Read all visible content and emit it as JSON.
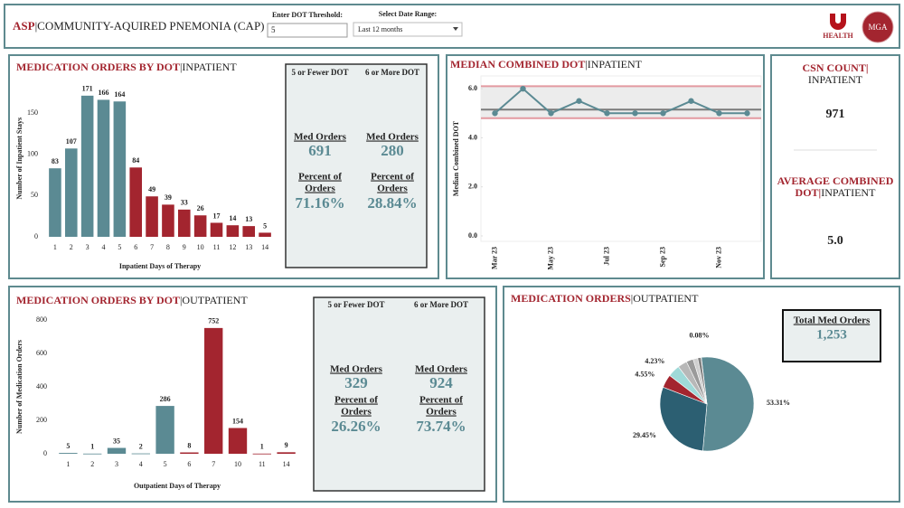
{
  "header": {
    "title_prefix": "ASP",
    "title": "|COMMUNITY-AQUIRED PNEMONIA (CAP)",
    "threshold_label": "Enter DOT Threshold:",
    "threshold_value": "5",
    "date_label": "Select Date Range:",
    "date_value": "Last 12 months",
    "logo_text": "HEALTH",
    "logo2_text": "MGA"
  },
  "inpatient_summary": {
    "box_headers": [
      "5 or Fewer DOT",
      "6 or More DOT"
    ],
    "med_orders_label": "Med Orders",
    "med_orders": [
      691,
      280
    ],
    "percent_label": [
      "Percent of",
      "Orders"
    ],
    "percents": [
      "71.16%",
      "28.84%"
    ]
  },
  "outpatient_summary": {
    "box_headers": [
      "5 or Fewer DOT",
      "6 or More DOT"
    ],
    "med_orders_label": "Med Orders",
    "med_orders": [
      329,
      924
    ],
    "percent_label": [
      "Percent of",
      "Orders"
    ],
    "percents": [
      "26.26%",
      "73.74%"
    ]
  },
  "kpi": {
    "csn_title": "CSN COUNT|",
    "csn_subtitle": "INPATIENT",
    "csn_value": 971,
    "avg_title": [
      "AVERAGE COMBINED",
      "DOT|"
    ],
    "avg_subtitle": "INPATIENT",
    "avg_value": "5.0"
  },
  "total_box": {
    "label": "Total Med Orders",
    "value": "1,253"
  },
  "chart_data": [
    {
      "type": "bar",
      "title": "MEDICATION ORDERS BY DOT",
      "subtitle": "|INPATIENT",
      "categories": [
        "1",
        "2",
        "3",
        "4",
        "5",
        "6",
        "7",
        "8",
        "9",
        "10",
        "11",
        "12",
        "13",
        "14"
      ],
      "values": [
        83,
        107,
        171,
        166,
        164,
        84,
        49,
        39,
        33,
        26,
        17,
        14,
        13,
        5
      ],
      "colors": [
        "#5b8a93",
        "#5b8a93",
        "#5b8a93",
        "#5b8a93",
        "#5b8a93",
        "#a3252f",
        "#a3252f",
        "#a3252f",
        "#a3252f",
        "#a3252f",
        "#a3252f",
        "#a3252f",
        "#a3252f",
        "#a3252f"
      ],
      "ylim": [
        0,
        190
      ],
      "yticks": [
        0,
        50,
        100,
        150
      ],
      "y_label": "Number of Inpatient Stays",
      "x_label": "Inpatient Days of Therapy"
    },
    {
      "type": "line",
      "title": "MEDIAN COMBINED DOT",
      "subtitle": "|INPATIENT",
      "categories": [
        "Mar 23",
        null,
        "May 23",
        null,
        "Jul 23",
        null,
        "Sep 23",
        null,
        "Nov 23",
        null
      ],
      "values": [
        5,
        6,
        5,
        5.5,
        5,
        5,
        5,
        5.5,
        5,
        5
      ],
      "color": "#5b8a93",
      "ylim": [
        0,
        6.3
      ],
      "yticks": [
        {
          "value": 0,
          "label": "0.0"
        },
        {
          "value": 2,
          "label": "2.0"
        },
        {
          "value": 4,
          "label": "4.0"
        },
        {
          "value": 6,
          "label": "6.0"
        }
      ],
      "reference_lines": [
        {
          "value": 6.1,
          "color": "#e39aa1"
        },
        {
          "value": 5.15,
          "color": "#7a7a7a"
        },
        {
          "value": 4.8,
          "color": "#e39aa1"
        }
      ],
      "y_label": "Median Combined DOT"
    },
    {
      "type": "bar",
      "title": "MEDICATION ORDERS BY DOT",
      "subtitle": "|OUTPATIENT",
      "categories": [
        "1",
        "2",
        "3",
        "4",
        "5",
        "6",
        "7",
        "10",
        "11",
        "14"
      ],
      "values": [
        5,
        1,
        35,
        2,
        286,
        8,
        752,
        154,
        1,
        9
      ],
      "colors": [
        "#5b8a93",
        "#5b8a93",
        "#5b8a93",
        "#5b8a93",
        "#5b8a93",
        "#a3252f",
        "#a3252f",
        "#a3252f",
        "#a3252f",
        "#a3252f"
      ],
      "ylim": [
        0,
        800
      ],
      "yticks": [
        0,
        200,
        400,
        600,
        800
      ],
      "y_label": "Number of Medication Orders",
      "x_label": "Outpatient Days of Therapy"
    },
    {
      "type": "pie",
      "title": "MEDICATION ORDERS",
      "subtitle": "|OUTPATIENT",
      "values": [
        53.31,
        29.45,
        4.55,
        4.23,
        3.2,
        2.4,
        1.6,
        1.18,
        0.08
      ],
      "value_labels": [
        "53.31%",
        "29.45%",
        "4.55%",
        "4.23%",
        null,
        null,
        null,
        null,
        "0.08%"
      ],
      "colors": [
        "#5b8a93",
        "#2c5f72",
        "#a3252f",
        "#9fd9d8",
        "#b8b8b8",
        "#9a9a9a",
        "#cfcfcf",
        "#808080",
        "#5a5a5a"
      ]
    }
  ]
}
